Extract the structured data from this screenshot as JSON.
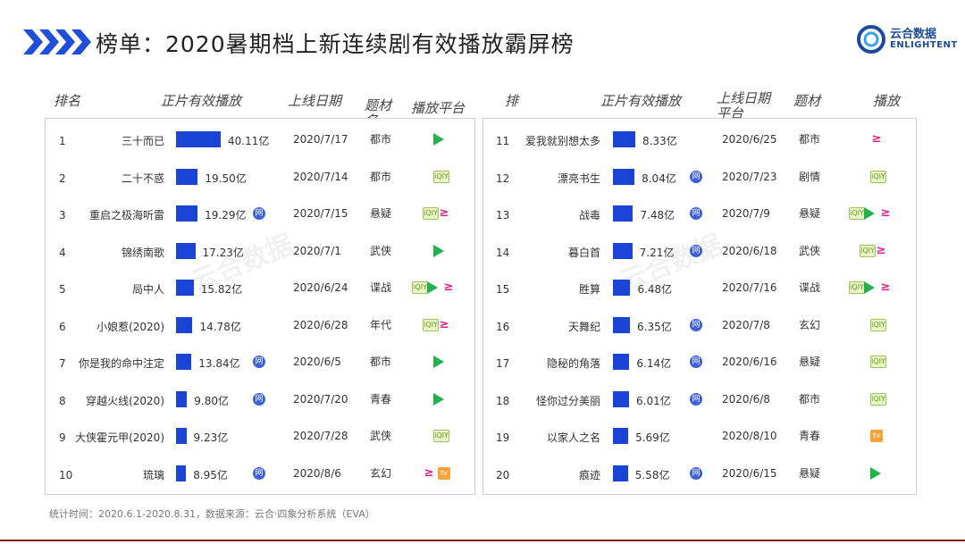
{
  "title": "榜单：2020暑期档上新连续剧有效播放霸屏榜",
  "logo": {
    "cn": "云合数据",
    "en": "ENLIGHTENT"
  },
  "watermark": {
    "cn": "云合数据",
    "en": "ENLIGHTENT"
  },
  "headers_left": {
    "rank": "排名",
    "plays": "正片有效播放",
    "date": "上线日期",
    "genre": "题材名",
    "platform": "播放平台"
  },
  "headers_right": {
    "rank": "排",
    "plays": "正片有效播放",
    "date": "上线日期平台",
    "genre": "题材",
    "platform": "播放"
  },
  "badge_text": "网",
  "platform_labels": {
    "iqiyi": "iQIY",
    "youku": "≥",
    "mango": "tv"
  },
  "footer": "统计时间：2020.6.1-2020.8.31，数据来源：云合·四象分析系统（EVA）",
  "colors": {
    "bar": "#1a44d6",
    "badge": "#3d5fd8",
    "tencent": "#22b24c",
    "youku": "#e0208a",
    "mango": "#f8a23a"
  },
  "chart_data": {
    "type": "bar",
    "unit": "亿",
    "rows": [
      {
        "rank": "1",
        "name": "三十而已",
        "value": 40.11,
        "label": "40.11亿",
        "date": "2020/7/17",
        "genre": "都市",
        "web": false,
        "platforms": [
          "tencent"
        ]
      },
      {
        "rank": "2",
        "name": "二十不惑",
        "value": 19.5,
        "label": "19.50亿",
        "date": "2020/7/14",
        "genre": "都市",
        "web": false,
        "platforms": [
          "iqiyi"
        ]
      },
      {
        "rank": "3",
        "name": "重启之极海听雷",
        "value": 19.29,
        "label": "19.29亿",
        "date": "2020/7/15",
        "genre": "悬疑",
        "web": true,
        "platforms": [
          "iqiyi",
          "youku"
        ]
      },
      {
        "rank": "4",
        "name": "锦绣南歌",
        "value": 17.23,
        "label": "17.23亿",
        "date": "2020/7/1",
        "genre": "武侠",
        "web": false,
        "platforms": [
          "tencent"
        ]
      },
      {
        "rank": "5",
        "name": "局中人",
        "value": 15.82,
        "label": "15.82亿",
        "date": "2020/6/24",
        "genre": "谍战",
        "web": false,
        "platforms": [
          "iqiyi",
          "tencent",
          "youku"
        ]
      },
      {
        "rank": "6",
        "name": "小娘惹(2020)",
        "value": 14.78,
        "label": "14.78亿",
        "date": "2020/6/28",
        "genre": "年代",
        "web": false,
        "platforms": [
          "iqiyi",
          "youku"
        ]
      },
      {
        "rank": "7",
        "name": "你是我的命中注定",
        "value": 13.84,
        "label": "13.84亿",
        "date": "2020/6/5",
        "genre": "都市",
        "web": true,
        "platforms": [
          "tencent"
        ]
      },
      {
        "rank": "8",
        "name": "穿越火线(2020)",
        "value": 9.8,
        "label": "9.80亿",
        "date": "2020/7/20",
        "genre": "青春",
        "web": true,
        "platforms": [
          "tencent"
        ]
      },
      {
        "rank": "9",
        "name": "大侠霍元甲(2020)",
        "value": 9.23,
        "label": "9.23亿",
        "date": "2020/7/28",
        "genre": "武侠",
        "web": false,
        "platforms": [
          "iqiyi"
        ]
      },
      {
        "rank": "10",
        "name": "琉璃",
        "value": 8.95,
        "label": "8.95亿",
        "date": "2020/8/6",
        "genre": "玄幻",
        "web": true,
        "platforms": [
          "youku",
          "mango"
        ]
      },
      {
        "rank": "11",
        "name": "爱我就别想太多",
        "value": 8.33,
        "label": "8.33亿",
        "date": "2020/6/25",
        "genre": "都市",
        "web": false,
        "platforms": [
          "youku"
        ]
      },
      {
        "rank": "12",
        "name": "漂亮书生",
        "value": 8.04,
        "label": "8.04亿",
        "date": "2020/7/23",
        "genre": "剧情",
        "web": true,
        "platforms": [
          "iqiyi"
        ]
      },
      {
        "rank": "13",
        "name": "战毒",
        "value": 7.48,
        "label": "7.48亿",
        "date": "2020/7/9",
        "genre": "悬疑",
        "web": true,
        "platforms": [
          "iqiyi",
          "tencent",
          "youku"
        ]
      },
      {
        "rank": "14",
        "name": "暮白首",
        "value": 7.21,
        "label": "7.21亿",
        "date": "2020/6/18",
        "genre": "武侠",
        "web": true,
        "platforms": [
          "iqiyi",
          "youku"
        ]
      },
      {
        "rank": "15",
        "name": "胜算",
        "value": 6.48,
        "label": "6.48亿",
        "date": "2020/7/16",
        "genre": "谍战",
        "web": false,
        "platforms": [
          "iqiyi",
          "tencent",
          "youku"
        ]
      },
      {
        "rank": "16",
        "name": "天舞纪",
        "value": 6.35,
        "label": "6.35亿",
        "date": "2020/7/8",
        "genre": "玄幻",
        "web": true,
        "platforms": [
          "iqiyi"
        ]
      },
      {
        "rank": "17",
        "name": "隐秘的角落",
        "value": 6.14,
        "label": "6.14亿",
        "date": "2020/6/16",
        "genre": "悬疑",
        "web": true,
        "platforms": [
          "iqiyi"
        ]
      },
      {
        "rank": "18",
        "name": "怪你过分美丽",
        "value": 6.01,
        "label": "6.01亿",
        "date": "2020/6/8",
        "genre": "都市",
        "web": true,
        "platforms": [
          "iqiyi"
        ]
      },
      {
        "rank": "19",
        "name": "以家人之名",
        "value": 5.69,
        "label": "5.69亿",
        "date": "2020/8/10",
        "genre": "青春",
        "web": false,
        "platforms": [
          "mango"
        ]
      },
      {
        "rank": "20",
        "name": "痕迹",
        "value": 5.58,
        "label": "5.58亿",
        "date": "2020/6/15",
        "genre": "悬疑",
        "web": true,
        "platforms": [
          "tencent"
        ]
      }
    ]
  }
}
